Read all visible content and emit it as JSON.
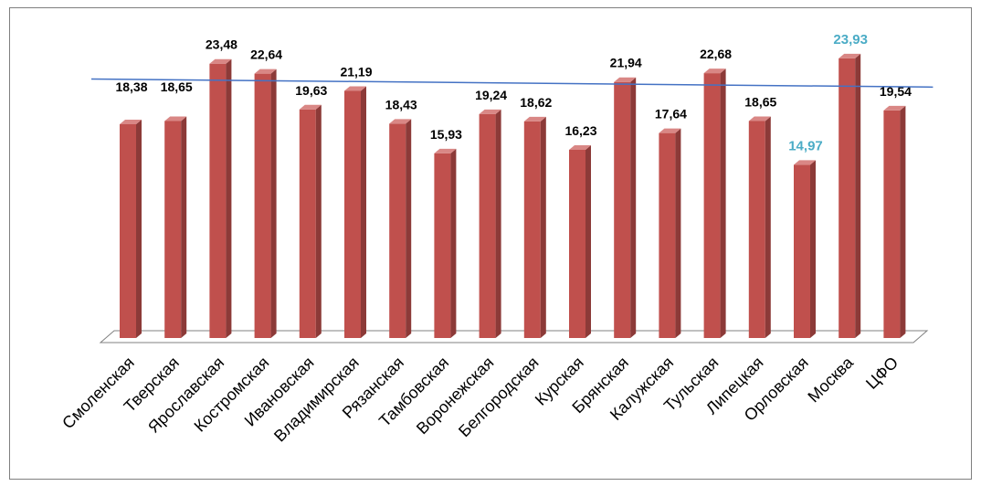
{
  "chart_data": {
    "type": "bar",
    "style": "3d-column",
    "categories": [
      "Смоленская",
      "Тверская",
      "Ярославская",
      "Костромская",
      "Ивановская",
      "Владимирская",
      "Рязанская",
      "Тамбовская",
      "Воронежская",
      "Белгородская",
      "Курская",
      "Брянская",
      "Калужская",
      "Тульская",
      "Липецкая",
      "Орловская",
      "Москва",
      "ЦФО"
    ],
    "values": [
      18.38,
      18.65,
      23.48,
      22.64,
      19.63,
      21.19,
      18.43,
      15.93,
      19.24,
      18.62,
      16.23,
      21.94,
      17.64,
      22.68,
      18.65,
      14.97,
      23.93,
      19.54
    ],
    "value_labels": [
      "18,38",
      "18,65",
      "23,48",
      "22,64",
      "19,63",
      "21,19",
      "18,43",
      "15,93",
      "19,24",
      "18,62",
      "16,23",
      "21,94",
      "17,64",
      "22,68",
      "18,65",
      "14,97",
      "23,93",
      "19,54"
    ],
    "highlighted_labels": [
      "14,97",
      "23,93"
    ],
    "trendline": true,
    "axis_labels_shown": false,
    "grid": false,
    "legend": "none",
    "colors": {
      "bar_front": "#C0504D",
      "bar_side": "#8C3A38",
      "bar_top": "#D98785",
      "trendline": "#4472C4",
      "highlight_label": "#4BACC6",
      "floor": "#FFFFFF",
      "floor_stroke": "#808080",
      "frame": "#7F7F7F"
    }
  }
}
